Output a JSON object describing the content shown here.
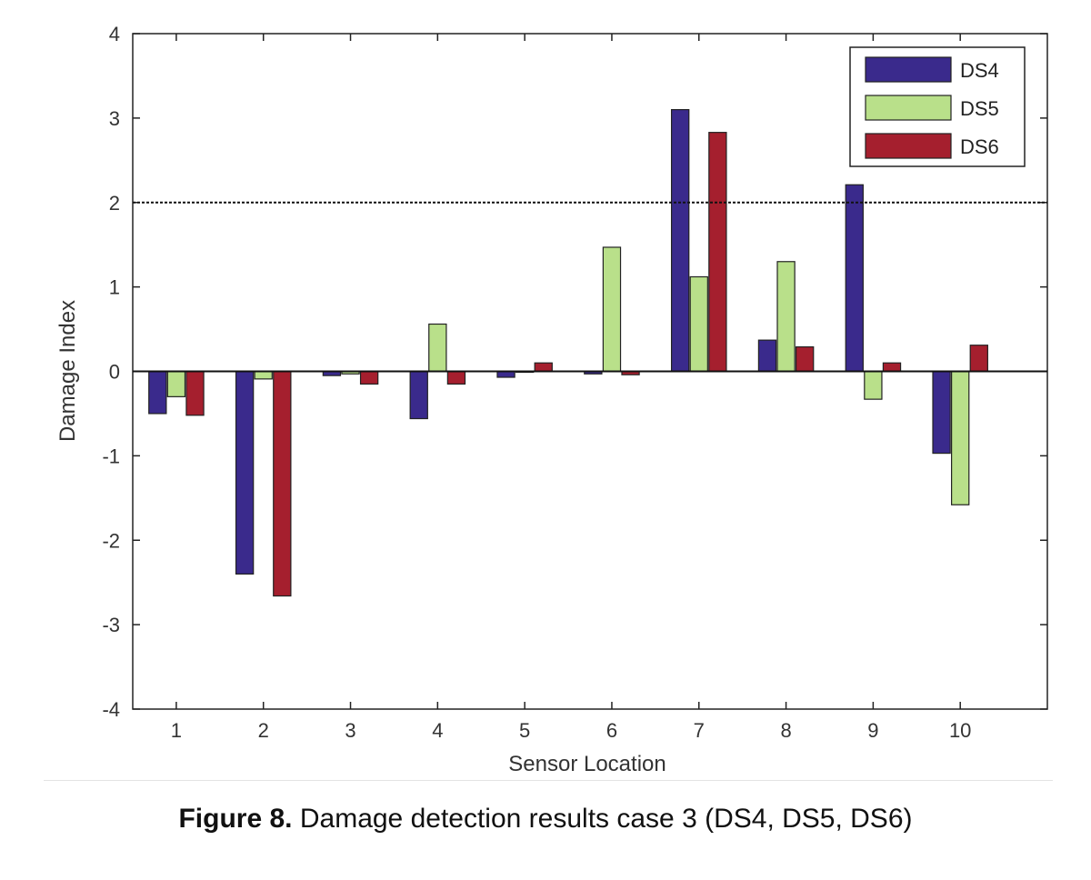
{
  "figure": {
    "caption_label": "Figure 8.",
    "caption_text": " Damage detection results case 3 (DS4, DS5, DS6)"
  },
  "chart_data": {
    "type": "bar",
    "xlabel": "Sensor Location",
    "ylabel": "Damage Index",
    "ylim": [
      -4,
      4
    ],
    "yticks": [
      -4,
      -3,
      -2,
      -1,
      0,
      1,
      2,
      3,
      4
    ],
    "xlim": [
      0.5,
      11
    ],
    "categories": [
      "1",
      "2",
      "3",
      "4",
      "5",
      "6",
      "7",
      "8",
      "9",
      "10"
    ],
    "series": [
      {
        "name": "DS4",
        "color": "#3a2a8c",
        "values": [
          -0.5,
          -2.4,
          -0.05,
          -0.56,
          -0.07,
          -0.03,
          3.1,
          0.37,
          2.21,
          -0.97
        ]
      },
      {
        "name": "DS5",
        "color": "#b9e08a",
        "values": [
          -0.3,
          -0.09,
          -0.03,
          0.56,
          0.0,
          1.47,
          1.12,
          1.3,
          -0.33,
          -1.58
        ]
      },
      {
        "name": "DS6",
        "color": "#a51f2e",
        "values": [
          -0.52,
          -2.66,
          -0.15,
          -0.15,
          0.1,
          -0.04,
          2.83,
          0.29,
          0.1,
          0.31
        ]
      }
    ],
    "threshold": 2,
    "grid": false,
    "legend_position": "top-right"
  }
}
